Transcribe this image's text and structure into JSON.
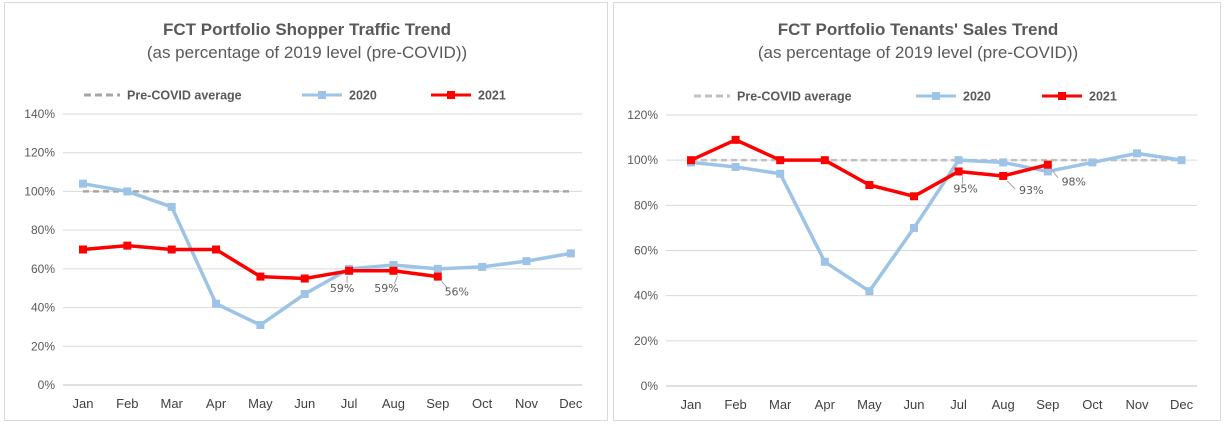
{
  "chart_data": [
    {
      "type": "line",
      "title": "FCT Portfolio Shopper Traffic Trend",
      "subtitle": "(as percentage of 2019 level (pre-COVID))",
      "categories": [
        "Jan",
        "Feb",
        "Mar",
        "Apr",
        "May",
        "Jun",
        "Jul",
        "Aug",
        "Sep",
        "Oct",
        "Nov",
        "Dec"
      ],
      "ylim": [
        0,
        140
      ],
      "yticks": [
        0,
        20,
        40,
        60,
        80,
        100,
        120,
        140
      ],
      "ytick_labels": [
        "0%",
        "20%",
        "40%",
        "60%",
        "80%",
        "100%",
        "120%",
        "140%"
      ],
      "grid": true,
      "legend_position": "top",
      "series": [
        {
          "name": "Pre-COVID average",
          "style": "dashed",
          "color": "#a6a6a6",
          "values": [
            100,
            100,
            100,
            100,
            100,
            100,
            100,
            100,
            100,
            100,
            100,
            100
          ]
        },
        {
          "name": "2020",
          "style": "solid",
          "color": "#9dc3e6",
          "values": [
            104,
            100,
            92,
            42,
            31,
            47,
            60,
            62,
            60,
            61,
            64,
            68
          ]
        },
        {
          "name": "2021",
          "style": "solid",
          "color": "#ff0000",
          "values": [
            70,
            72,
            70,
            70,
            56,
            55,
            59,
            59,
            56,
            null,
            null,
            null
          ]
        }
      ],
      "annotations": [
        {
          "series": "2021",
          "index": 6,
          "label": "59%"
        },
        {
          "series": "2021",
          "index": 7,
          "label": "59%"
        },
        {
          "series": "2021",
          "index": 8,
          "label": "56%"
        }
      ]
    },
    {
      "type": "line",
      "title": "FCT Portfolio Tenants' Sales Trend",
      "subtitle": "(as percentage of 2019 level (pre-COVID))",
      "categories": [
        "Jan",
        "Feb",
        "Mar",
        "Apr",
        "May",
        "Jun",
        "Jul",
        "Aug",
        "Sep",
        "Oct",
        "Nov",
        "Dec"
      ],
      "ylim": [
        0,
        120
      ],
      "yticks": [
        0,
        20,
        40,
        60,
        80,
        100,
        120
      ],
      "ytick_labels": [
        "0%",
        "20%",
        "40%",
        "60%",
        "80%",
        "100%",
        "120%"
      ],
      "grid": true,
      "legend_position": "top",
      "series": [
        {
          "name": "Pre-COVID average",
          "style": "dashed",
          "color": "#bfbfbf",
          "values": [
            100,
            100,
            100,
            100,
            100,
            100,
            100,
            100,
            100,
            100,
            100,
            100
          ]
        },
        {
          "name": "2020",
          "style": "solid",
          "color": "#9dc3e6",
          "values": [
            99,
            97,
            94,
            55,
            42,
            70,
            100,
            99,
            95,
            99,
            103,
            100
          ]
        },
        {
          "name": "2021",
          "style": "solid",
          "color": "#ff0000",
          "values": [
            100,
            109,
            100,
            100,
            89,
            84,
            95,
            93,
            98,
            null,
            null,
            null
          ]
        }
      ],
      "annotations": [
        {
          "series": "2021",
          "index": 6,
          "label": "95%"
        },
        {
          "series": "2021",
          "index": 7,
          "label": "93%"
        },
        {
          "series": "2021",
          "index": 8,
          "label": "98%"
        }
      ]
    }
  ]
}
